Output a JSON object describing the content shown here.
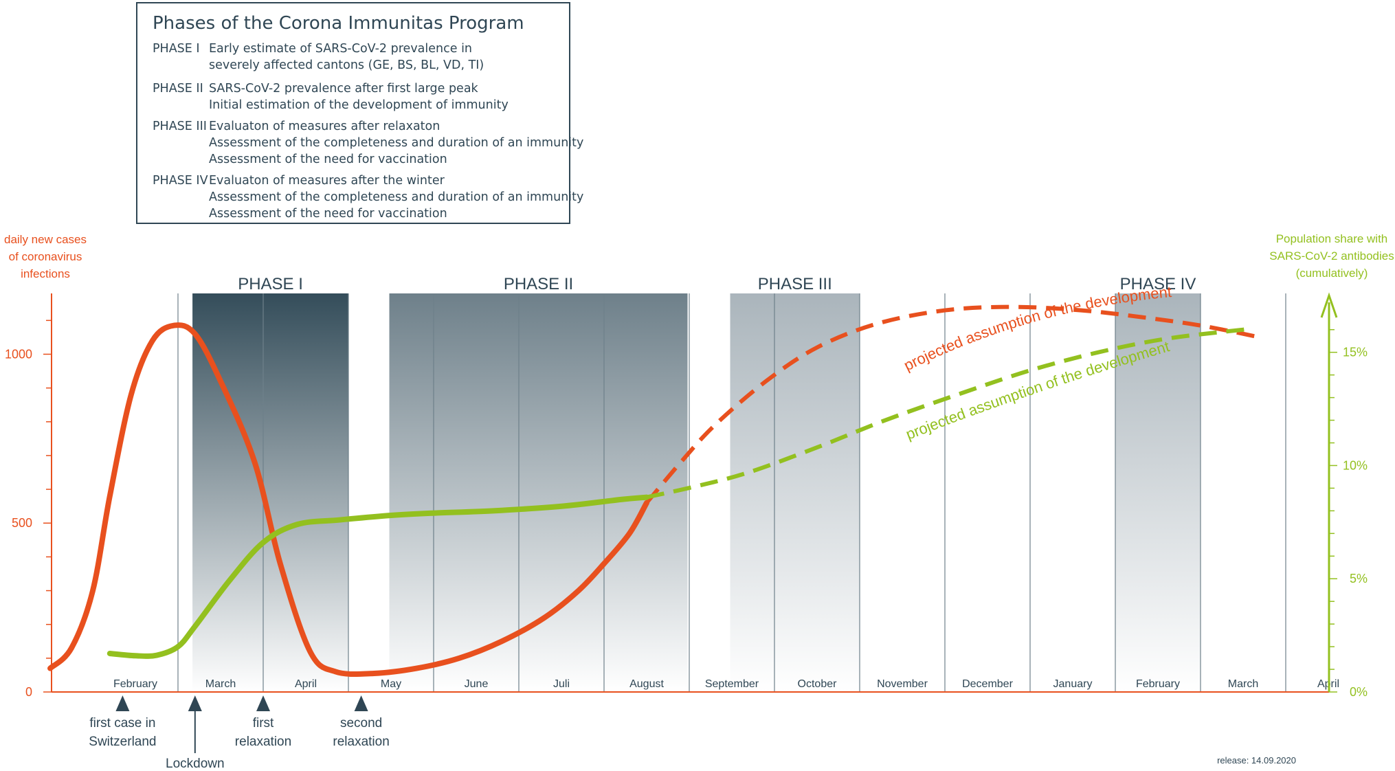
{
  "legend": {
    "title": "Phases of the Corona Immunitas Program",
    "phases": [
      {
        "label": "PHASE I",
        "lines": [
          "Early estimate of SARS-CoV-2 prevalence in",
          "severely affected cantons (GE, BS, BL, VD, TI)"
        ]
      },
      {
        "label": "PHASE II",
        "lines": [
          "SARS-CoV-2 prevalence after first large peak",
          "Initial estimation of the development of immunity"
        ]
      },
      {
        "label": "PHASE III",
        "lines": [
          "Evaluaton of measures after relaxaton",
          "Assessment of the completeness and duration of an immunity",
          "Assessment of the need for vaccination"
        ]
      },
      {
        "label": "PHASE IV",
        "lines": [
          "Evaluaton of measures after the winter",
          "Assessment of the completeness and duration of an immunity",
          "Assessment of the need for vaccination"
        ]
      }
    ]
  },
  "release": "release: 14.09.2020",
  "colors": {
    "cases": "#e8501e",
    "antibodies": "#93c01f",
    "dark": "#2f4654",
    "phase_dark": "#344d5a",
    "phase_gray": "#6e808a",
    "grid": "#6e808a"
  },
  "chart_data": {
    "type": "line",
    "months": [
      "February",
      "March",
      "April",
      "May",
      "June",
      "Juli",
      "August",
      "September",
      "October",
      "November",
      "December",
      "January",
      "February",
      "March",
      "April"
    ],
    "left_axis": {
      "label_lines": [
        "daily new cases",
        "of coronavirus",
        "infections"
      ],
      "ticks": [
        "0",
        "500",
        "1000"
      ],
      "tick_values": [
        0,
        500,
        1000
      ],
      "range": [
        0,
        1180
      ]
    },
    "right_axis": {
      "label_lines": [
        "Population share with",
        "SARS-CoV-2 antibodies",
        "(cumulatively)"
      ],
      "ticks": [
        "0%",
        "5%",
        "10%",
        "15%"
      ],
      "tick_values": [
        0,
        5,
        10,
        15
      ],
      "range": [
        0,
        17.6
      ]
    },
    "phases": [
      {
        "label": "PHASE I",
        "start": 1.17,
        "end": 3.0,
        "style": "dark"
      },
      {
        "label": "PHASE II",
        "start": 3.48,
        "end": 6.98,
        "style": "gray"
      },
      {
        "label": "PHASE III",
        "start": 7.48,
        "end": 9.0,
        "style": "light"
      },
      {
        "label": "PHASE IV",
        "start": 12.0,
        "end": 13.0,
        "style": "light"
      }
    ],
    "events": [
      {
        "label_lines": [
          "first case in",
          "Switzerland"
        ],
        "x": 0.35
      },
      {
        "label_lines": [
          "Lockdown"
        ],
        "x": 1.2
      },
      {
        "label_lines": [
          "first",
          "relaxation"
        ],
        "x": 2.0
      },
      {
        "label_lines": [
          "second",
          "relaxation"
        ],
        "x": 3.15
      }
    ],
    "series": [
      {
        "name": "daily new cases",
        "axis": "left",
        "color": "#e8501e",
        "solid": [
          [
            -0.5,
            70
          ],
          [
            -0.25,
            130
          ],
          [
            0.0,
            300
          ],
          [
            0.2,
            580
          ],
          [
            0.45,
            880
          ],
          [
            0.7,
            1040
          ],
          [
            0.95,
            1085
          ],
          [
            1.2,
            1060
          ],
          [
            1.5,
            920
          ],
          [
            1.9,
            680
          ],
          [
            2.2,
            380
          ],
          [
            2.55,
            120
          ],
          [
            2.85,
            60
          ],
          [
            3.3,
            55
          ],
          [
            3.8,
            70
          ],
          [
            4.3,
            100
          ],
          [
            4.8,
            150
          ],
          [
            5.3,
            220
          ],
          [
            5.7,
            300
          ],
          [
            6.0,
            380
          ],
          [
            6.3,
            470
          ],
          [
            6.5,
            560
          ]
        ],
        "projected": [
          [
            6.5,
            560
          ],
          [
            6.9,
            680
          ],
          [
            7.3,
            790
          ],
          [
            7.9,
            920
          ],
          [
            8.5,
            1020
          ],
          [
            9.2,
            1090
          ],
          [
            10.0,
            1130
          ],
          [
            10.8,
            1140
          ],
          [
            11.6,
            1130
          ],
          [
            12.3,
            1110
          ],
          [
            13.0,
            1085
          ],
          [
            13.7,
            1050
          ]
        ]
      },
      {
        "name": "antibody share",
        "axis": "right",
        "color": "#93c01f",
        "solid": [
          [
            0.2,
            1.7
          ],
          [
            0.5,
            1.6
          ],
          [
            0.75,
            1.62
          ],
          [
            1.0,
            2.0
          ],
          [
            1.2,
            2.9
          ],
          [
            1.6,
            4.9
          ],
          [
            2.0,
            6.6
          ],
          [
            2.4,
            7.4
          ],
          [
            2.9,
            7.6
          ],
          [
            3.5,
            7.8
          ],
          [
            4.0,
            7.9
          ],
          [
            4.7,
            8.0
          ],
          [
            5.5,
            8.2
          ],
          [
            6.2,
            8.5
          ],
          [
            6.5,
            8.6
          ]
        ],
        "projected": [
          [
            6.5,
            8.6
          ],
          [
            7.1,
            9.1
          ],
          [
            7.7,
            9.7
          ],
          [
            8.5,
            10.8
          ],
          [
            9.3,
            12.0
          ],
          [
            10.2,
            13.2
          ],
          [
            11.0,
            14.2
          ],
          [
            11.8,
            15.0
          ],
          [
            12.6,
            15.6
          ],
          [
            13.5,
            16.0
          ],
          [
            13.5,
            16.0
          ]
        ]
      }
    ],
    "annotations": [
      {
        "text": "projected assumption of the development",
        "series": "daily new cases"
      },
      {
        "text": "projected assumption of the development",
        "series": "antibody share"
      }
    ]
  }
}
